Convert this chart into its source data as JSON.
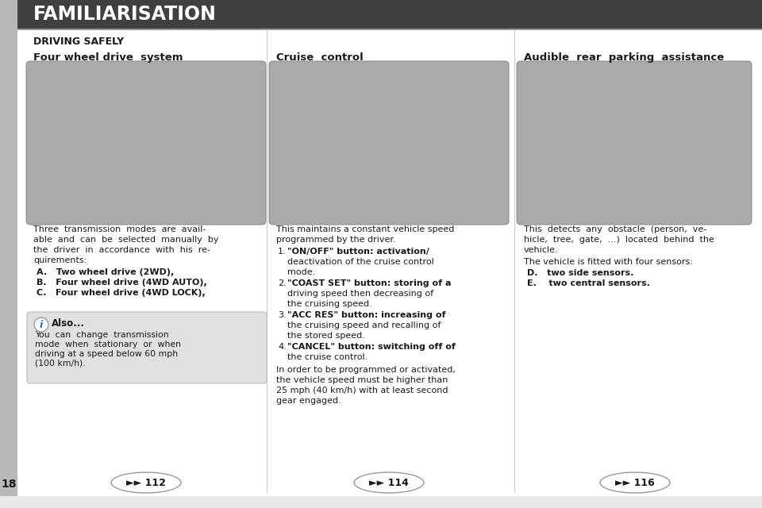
{
  "bg_color": "#c8c8c8",
  "sidebar_color": "#b8b8b8",
  "content_bg": "#ffffff",
  "header_bg": "#404040",
  "header_text": "FAMILIARISATION",
  "header_text_color": "#ffffff",
  "subheader_text": "DRIVING SAFELY",
  "col1_title": "Four wheel drive  system",
  "col2_title": "Cruise  control",
  "col3_title": "Audible  rear  parking  assistance",
  "col1_body_lines": [
    "Three  transmission  modes  are  avail-",
    "able  and  can  be  selected  manually  by",
    "the  driver  in  accordance  with  his  re-",
    "quirements:"
  ],
  "col1_items": [
    "A.   Two wheel drive (2WD),",
    "B.   Four wheel drive (4WD AUTO),",
    "C.   Four wheel drive (4WD LOCK),"
  ],
  "col2_body_lines": [
    "This maintains a constant vehicle speed",
    "programmed by the driver."
  ],
  "col2_items": [
    {
      "num": "1.",
      "bold": "\"ON/OFF\"",
      "rest_lines": [
        " button: activation/",
        "deactivation of the cruise control",
        "mode."
      ]
    },
    {
      "num": "2.",
      "bold": "\"COAST SET\"",
      "rest_lines": [
        " button: storing of a",
        "driving speed then decreasing of",
        "the cruising speed."
      ]
    },
    {
      "num": "3.",
      "bold": "\"ACC RES\"",
      "rest_lines": [
        " button: increasing of",
        "the cruising speed and recalling of",
        "the stored speed."
      ]
    },
    {
      "num": "4.",
      "bold": "\"CANCEL\"",
      "rest_lines": [
        " button: switching off of",
        "the cruise control."
      ]
    }
  ],
  "col2_footer_lines": [
    "In order to be programmed or activated,",
    "the vehicle speed must be higher than",
    "25 mph (40 km/h) with at least second",
    "gear engaged."
  ],
  "col3_body_lines": [
    "This  detects  any  obstacle  (person,  ve-",
    "hicle,  tree,  gate,  ...)  located  behind  the",
    "vehicle."
  ],
  "col3_item0": "The vehicle is fitted with four sensors:",
  "col3_items": [
    "D.   two side sensors.",
    "E.    two central sensors."
  ],
  "info_title": "Also...",
  "info_body_lines": [
    "You  can  change  transmission",
    "mode  when  stationary  or  when",
    "driving at a speed below 60 mph",
    "(100 km/h)."
  ],
  "page_num": "18",
  "nav1": "►► 112",
  "nav2": "►► 114",
  "nav3": "►► 116"
}
